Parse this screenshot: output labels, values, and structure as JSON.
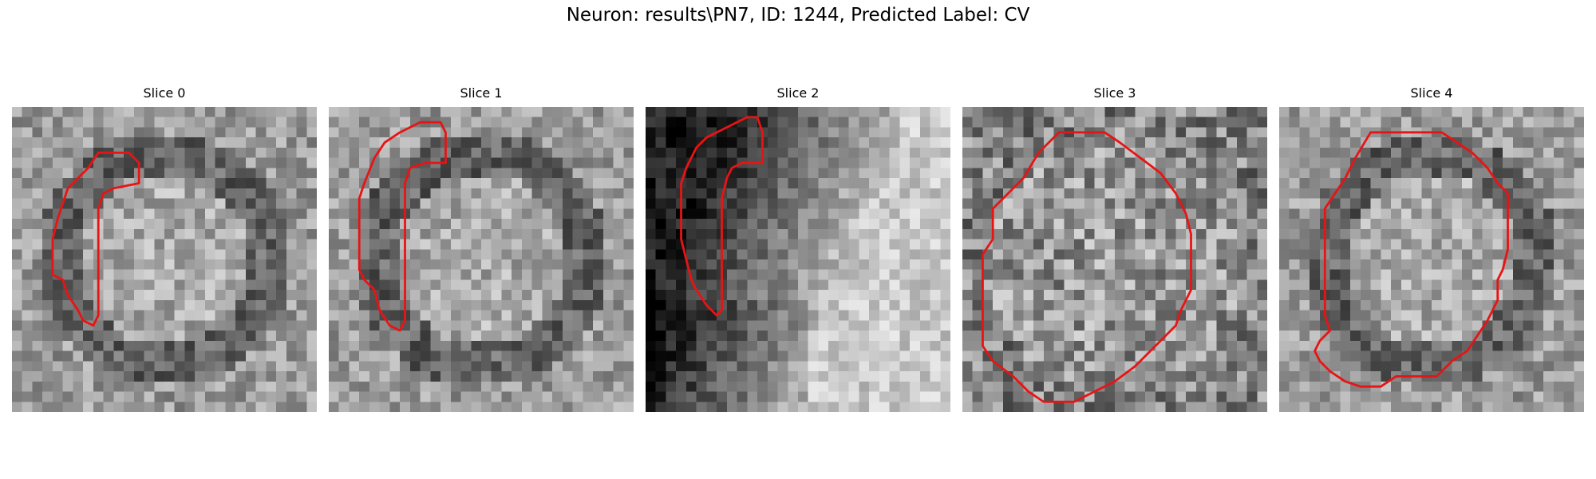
{
  "figure": {
    "title": "Neuron: results\\PN7, ID: 1244, Predicted Label: CV"
  },
  "colors": {
    "contour": "#e81414",
    "background": "#ffffff"
  },
  "panels": [
    {
      "title": "Slice 0",
      "style": "ring",
      "seed": 11,
      "contour": [
        [
          8.5,
          4.5
        ],
        [
          11.5,
          4.5
        ],
        [
          12.5,
          5.5
        ],
        [
          12.5,
          7.5
        ],
        [
          10.0,
          8.0
        ],
        [
          9.0,
          8.5
        ],
        [
          8.5,
          10.0
        ],
        [
          8.5,
          20.5
        ],
        [
          8.0,
          21.5
        ],
        [
          7.0,
          21.0
        ],
        [
          6.5,
          20.0
        ],
        [
          5.5,
          18.5
        ],
        [
          5.0,
          17.0
        ],
        [
          4.0,
          16.5
        ],
        [
          4.0,
          13.0
        ],
        [
          4.5,
          11.0
        ],
        [
          5.0,
          9.5
        ],
        [
          5.5,
          8.0
        ],
        [
          6.0,
          7.5
        ],
        [
          7.5,
          6.0
        ]
      ]
    },
    {
      "title": "Slice 1",
      "style": "ring",
      "seed": 23,
      "contour": [
        [
          9.0,
          1.5
        ],
        [
          11.0,
          1.5
        ],
        [
          11.5,
          2.5
        ],
        [
          11.5,
          5.5
        ],
        [
          9.5,
          5.5
        ],
        [
          8.0,
          6.0
        ],
        [
          7.5,
          7.5
        ],
        [
          7.5,
          21.0
        ],
        [
          7.0,
          22.0
        ],
        [
          6.0,
          21.5
        ],
        [
          5.0,
          20.0
        ],
        [
          4.5,
          18.0
        ],
        [
          3.5,
          17.0
        ],
        [
          3.0,
          16.0
        ],
        [
          3.0,
          9.0
        ],
        [
          3.5,
          7.5
        ],
        [
          4.5,
          5.0
        ],
        [
          5.5,
          3.5
        ],
        [
          7.0,
          2.5
        ]
      ]
    },
    {
      "title": "Slice 2",
      "style": "dark",
      "seed": 37,
      "contour": [
        [
          10.0,
          1.0
        ],
        [
          11.0,
          1.0
        ],
        [
          11.5,
          2.5
        ],
        [
          11.5,
          5.5
        ],
        [
          9.5,
          5.5
        ],
        [
          8.5,
          6.0
        ],
        [
          8.0,
          7.0
        ],
        [
          7.5,
          9.0
        ],
        [
          7.5,
          20.0
        ],
        [
          7.0,
          20.5
        ],
        [
          6.0,
          19.5
        ],
        [
          5.0,
          18.0
        ],
        [
          4.5,
          17.0
        ],
        [
          4.0,
          15.0
        ],
        [
          3.5,
          13.0
        ],
        [
          3.5,
          7.5
        ],
        [
          4.0,
          6.0
        ],
        [
          5.0,
          4.0
        ],
        [
          6.0,
          3.0
        ],
        [
          8.0,
          2.0
        ]
      ]
    },
    {
      "title": "Slice 3",
      "style": "noisy",
      "seed": 49,
      "contour": [
        [
          9.5,
          2.5
        ],
        [
          14.0,
          2.5
        ],
        [
          15.5,
          3.5
        ],
        [
          17.5,
          5.0
        ],
        [
          19.5,
          6.5
        ],
        [
          21.0,
          8.5
        ],
        [
          22.0,
          10.5
        ],
        [
          22.5,
          12.5
        ],
        [
          22.5,
          18.0
        ],
        [
          21.5,
          20.0
        ],
        [
          21.0,
          21.5
        ],
        [
          19.0,
          23.5
        ],
        [
          17.0,
          25.5
        ],
        [
          15.0,
          27.0
        ],
        [
          13.0,
          28.0
        ],
        [
          11.0,
          29.0
        ],
        [
          8.0,
          29.0
        ],
        [
          6.5,
          28.0
        ],
        [
          5.0,
          26.5
        ],
        [
          3.0,
          25.0
        ],
        [
          2.0,
          23.5
        ],
        [
          2.0,
          14.5
        ],
        [
          3.0,
          13.0
        ],
        [
          3.0,
          10.0
        ],
        [
          4.5,
          8.5
        ],
        [
          6.0,
          7.0
        ],
        [
          7.5,
          4.5
        ]
      ]
    },
    {
      "title": "Slice 4",
      "style": "ring",
      "seed": 61,
      "contour": [
        [
          9.0,
          2.5
        ],
        [
          16.0,
          2.5
        ],
        [
          17.5,
          3.5
        ],
        [
          19.0,
          4.5
        ],
        [
          20.5,
          6.0
        ],
        [
          21.5,
          7.5
        ],
        [
          22.5,
          8.5
        ],
        [
          22.5,
          14.0
        ],
        [
          22.0,
          16.0
        ],
        [
          21.5,
          17.0
        ],
        [
          21.5,
          19.0
        ],
        [
          20.5,
          21.0
        ],
        [
          19.5,
          22.5
        ],
        [
          18.5,
          24.0
        ],
        [
          17.0,
          25.0
        ],
        [
          15.5,
          26.5
        ],
        [
          11.5,
          26.5
        ],
        [
          10.0,
          27.5
        ],
        [
          8.0,
          27.5
        ],
        [
          6.5,
          27.0
        ],
        [
          5.0,
          26.0
        ],
        [
          4.0,
          25.0
        ],
        [
          3.5,
          24.0
        ],
        [
          4.0,
          23.0
        ],
        [
          5.0,
          22.0
        ],
        [
          4.5,
          20.5
        ],
        [
          4.5,
          10.0
        ],
        [
          5.5,
          8.5
        ],
        [
          6.5,
          7.0
        ],
        [
          7.5,
          5.0
        ]
      ]
    }
  ]
}
